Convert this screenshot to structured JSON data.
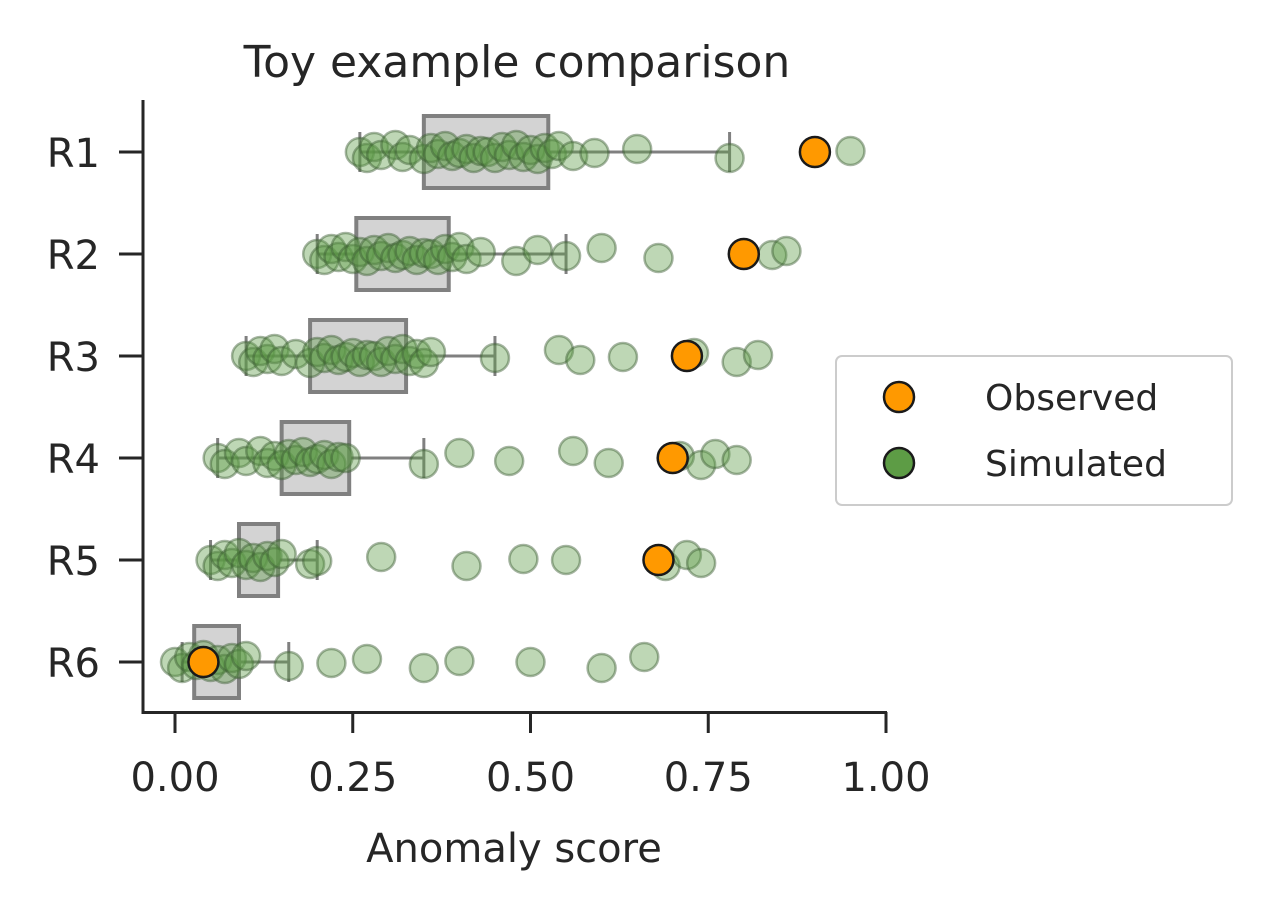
{
  "chart_data": {
    "type": "box-strip",
    "title": "Toy example comparison",
    "xlabel": "Anomaly score",
    "ylabel": "",
    "xlim": [
      -0.045,
      1.0
    ],
    "x_ticks": [
      0.0,
      0.25,
      0.5,
      0.75,
      1.0
    ],
    "x_tick_labels": [
      "0.00",
      "0.25",
      "0.50",
      "0.75",
      "1.00"
    ],
    "categories": [
      "R1",
      "R2",
      "R3",
      "R4",
      "R5",
      "R6"
    ],
    "grid": false,
    "legend": {
      "placement": "center-right",
      "entries": [
        "Observed",
        "Simulated"
      ]
    },
    "colors": {
      "observed": "#ff9900",
      "simulated": "#5d9c45",
      "box": "#d3d3d3",
      "box_edge": "#808080"
    },
    "boxes": [
      {
        "category": "R1",
        "q1": 0.35,
        "q3": 0.525,
        "whisker_low": 0.26,
        "whisker_high": 0.78
      },
      {
        "category": "R2",
        "q1": 0.255,
        "q3": 0.385,
        "whisker_low": 0.2,
        "whisker_high": 0.55
      },
      {
        "category": "R3",
        "q1": 0.19,
        "q3": 0.325,
        "whisker_low": 0.1,
        "whisker_high": 0.45
      },
      {
        "category": "R4",
        "q1": 0.15,
        "q3": 0.245,
        "whisker_low": 0.06,
        "whisker_high": 0.35
      },
      {
        "category": "R5",
        "q1": 0.09,
        "q3": 0.145,
        "whisker_low": 0.05,
        "whisker_high": 0.2
      },
      {
        "category": "R6",
        "q1": 0.027,
        "q3": 0.09,
        "whisker_low": 0.01,
        "whisker_high": 0.16
      }
    ],
    "series": [
      {
        "name": "Observed",
        "values": [
          {
            "category": "R1",
            "x": 0.9
          },
          {
            "category": "R2",
            "x": 0.8
          },
          {
            "category": "R3",
            "x": 0.72
          },
          {
            "category": "R4",
            "x": 0.7
          },
          {
            "category": "R5",
            "x": 0.68
          },
          {
            "category": "R6",
            "x": 0.04
          }
        ]
      },
      {
        "name": "Simulated",
        "values": [
          {
            "category": "R1",
            "x": [
              0.26,
              0.27,
              0.28,
              0.29,
              0.31,
              0.32,
              0.33,
              0.35,
              0.36,
              0.37,
              0.38,
              0.39,
              0.4,
              0.41,
              0.42,
              0.43,
              0.44,
              0.45,
              0.46,
              0.47,
              0.48,
              0.49,
              0.5,
              0.51,
              0.52,
              0.53,
              0.54,
              0.56,
              0.59,
              0.65,
              0.78,
              0.95
            ]
          },
          {
            "category": "R2",
            "x": [
              0.2,
              0.21,
              0.22,
              0.23,
              0.24,
              0.25,
              0.26,
              0.27,
              0.28,
              0.29,
              0.3,
              0.31,
              0.32,
              0.33,
              0.34,
              0.35,
              0.36,
              0.37,
              0.38,
              0.39,
              0.4,
              0.41,
              0.43,
              0.48,
              0.51,
              0.55,
              0.6,
              0.68,
              0.84,
              0.86
            ]
          },
          {
            "category": "R3",
            "x": [
              0.1,
              0.11,
              0.12,
              0.13,
              0.14,
              0.15,
              0.17,
              0.19,
              0.2,
              0.21,
              0.22,
              0.23,
              0.24,
              0.25,
              0.26,
              0.27,
              0.28,
              0.29,
              0.3,
              0.31,
              0.32,
              0.33,
              0.34,
              0.35,
              0.36,
              0.45,
              0.54,
              0.57,
              0.63,
              0.73,
              0.79,
              0.82
            ]
          },
          {
            "category": "R4",
            "x": [
              0.06,
              0.07,
              0.09,
              0.1,
              0.12,
              0.13,
              0.14,
              0.15,
              0.16,
              0.17,
              0.18,
              0.19,
              0.2,
              0.21,
              0.22,
              0.23,
              0.24,
              0.35,
              0.4,
              0.47,
              0.56,
              0.61,
              0.71,
              0.74,
              0.76,
              0.79
            ]
          },
          {
            "category": "R5",
            "x": [
              0.05,
              0.06,
              0.07,
              0.08,
              0.09,
              0.1,
              0.11,
              0.12,
              0.13,
              0.14,
              0.15,
              0.19,
              0.2,
              0.29,
              0.41,
              0.49,
              0.55,
              0.69,
              0.72,
              0.74
            ]
          },
          {
            "category": "R6",
            "x": [
              0.0,
              0.01,
              0.02,
              0.03,
              0.04,
              0.05,
              0.06,
              0.07,
              0.08,
              0.09,
              0.1,
              0.16,
              0.22,
              0.27,
              0.35,
              0.4,
              0.5,
              0.6,
              0.66
            ]
          }
        ]
      }
    ]
  }
}
